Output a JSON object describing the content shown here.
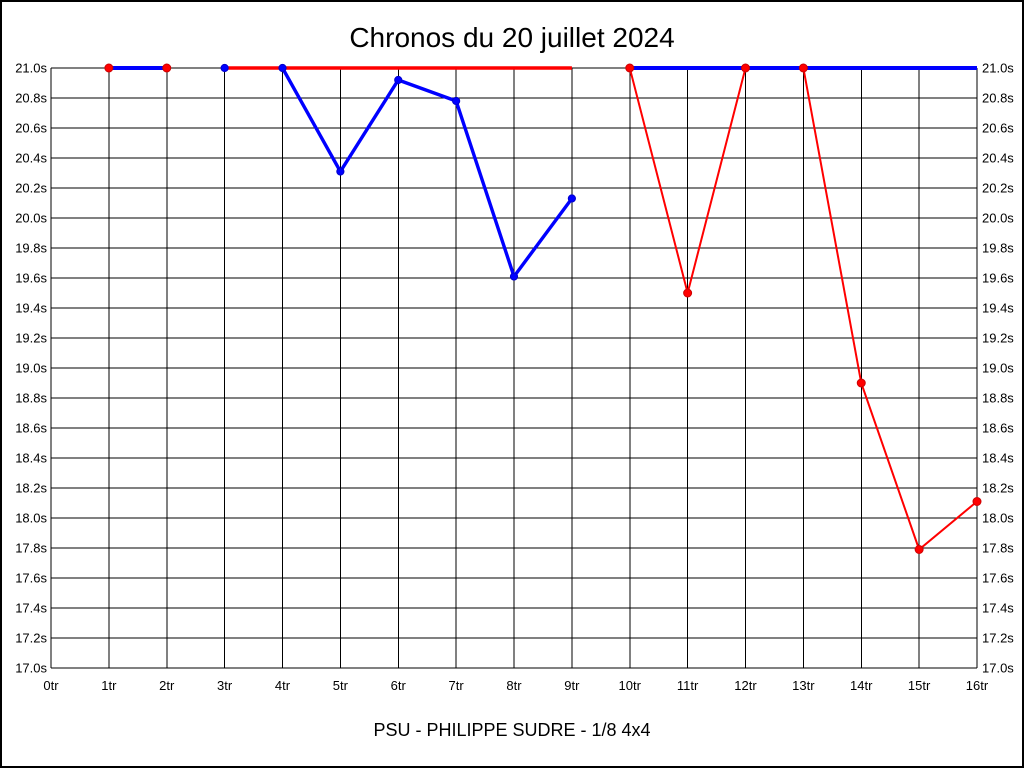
{
  "caption": "PSU - PHILIPPE SUDRE - 1/8 4x4",
  "colors": {
    "background": "#ffffff",
    "grid": "#000000",
    "red_series": "#ff0000",
    "blue_series": "#0000ff"
  },
  "chart_data": {
    "type": "line",
    "title": "Chronos du 20 juillet 2024",
    "xlabel": "",
    "ylabel": "",
    "xlim": [
      0,
      16
    ],
    "ylim": [
      17.0,
      21.0
    ],
    "grid": true,
    "legend": "none",
    "y_axis_on_both_sides": true,
    "x_tick_labels": [
      "0tr",
      "1tr",
      "2tr",
      "3tr",
      "4tr",
      "5tr",
      "6tr",
      "7tr",
      "8tr",
      "9tr",
      "10tr",
      "11tr",
      "12tr",
      "13tr",
      "14tr",
      "15tr",
      "16tr"
    ],
    "y_tick_labels": [
      "21.0s",
      "20.8s",
      "20.6s",
      "20.4s",
      "20.2s",
      "20.0s",
      "19.8s",
      "19.6s",
      "19.4s",
      "19.2s",
      "19.0s",
      "18.8s",
      "18.6s",
      "18.4s",
      "18.2s",
      "18.0s",
      "17.8s",
      "17.6s",
      "17.4s",
      "17.2s",
      "17.0s"
    ],
    "x_unit": "tr",
    "y_unit": "s",
    "series": [
      {
        "name": "red-series",
        "color": "#ff0000",
        "segments": [
          [
            [
              1,
              21.0
            ],
            [
              2,
              21.0
            ]
          ],
          [
            [
              3,
              21.0
            ],
            [
              9,
              21.0
            ]
          ],
          [
            [
              10,
              21.0
            ],
            [
              11,
              19.5
            ],
            [
              12,
              21.0
            ],
            [
              13,
              21.0
            ],
            [
              14,
              18.9
            ],
            [
              15,
              17.79
            ],
            [
              16,
              18.11
            ]
          ]
        ],
        "marker_points": [
          [
            1,
            21.0
          ],
          [
            2,
            21.0
          ],
          [
            10,
            21.0
          ],
          [
            11,
            19.5
          ],
          [
            12,
            21.0
          ],
          [
            13,
            21.0
          ],
          [
            14,
            18.9
          ],
          [
            15,
            17.79
          ],
          [
            16,
            18.11
          ]
        ]
      },
      {
        "name": "blue-series",
        "color": "#0000ff",
        "segments": [
          [
            [
              1,
              21.0
            ],
            [
              2,
              21.0
            ]
          ],
          [
            [
              4,
              21.0
            ],
            [
              5,
              20.31
            ],
            [
              6,
              20.92
            ],
            [
              7,
              20.78
            ],
            [
              8,
              19.61
            ],
            [
              9,
              20.13
            ]
          ],
          [
            [
              10,
              21.0
            ],
            [
              16,
              21.0
            ]
          ]
        ],
        "marker_points": [
          [
            3,
            21.0
          ],
          [
            4,
            21.0
          ],
          [
            5,
            20.31
          ],
          [
            6,
            20.92
          ],
          [
            7,
            20.78
          ],
          [
            8,
            19.61
          ],
          [
            9,
            20.13
          ]
        ]
      }
    ]
  }
}
